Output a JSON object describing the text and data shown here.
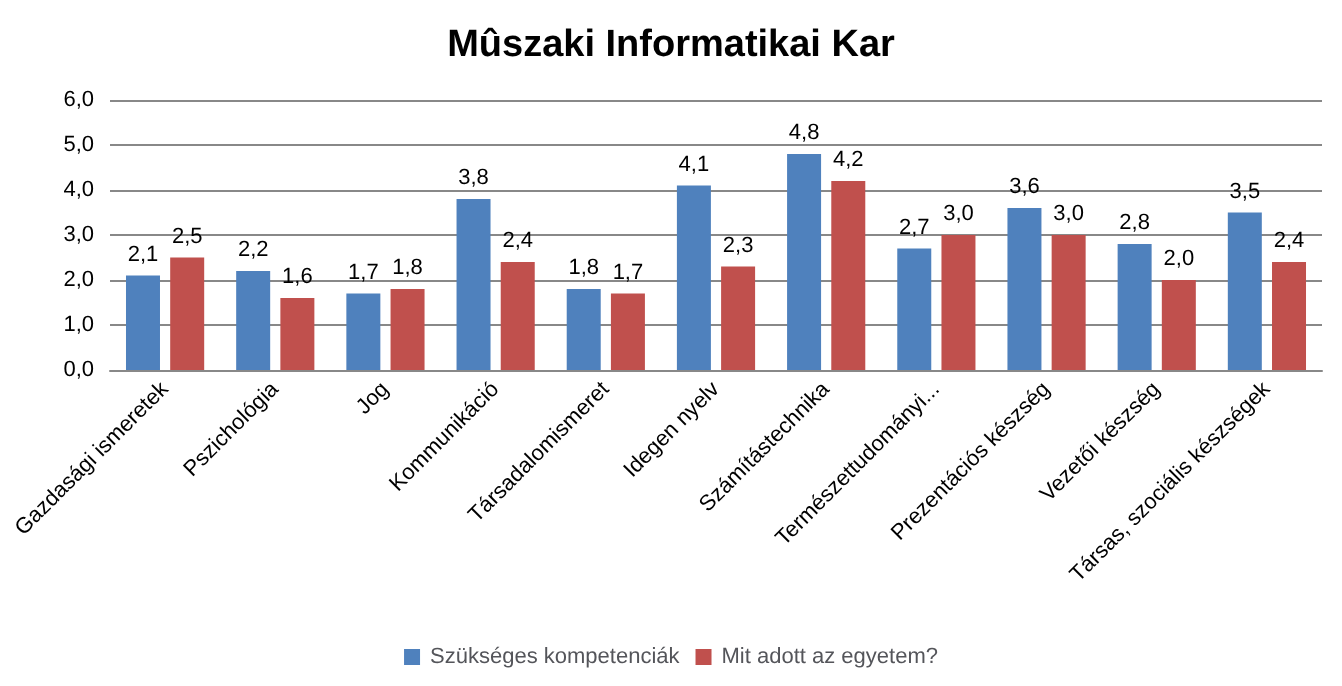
{
  "chart_data": {
    "type": "bar",
    "title": "Mûszaki Informatikai Kar",
    "categories": [
      "Gazdasági ismeretek",
      "Pszichológia",
      "Jog",
      "Kommunikáció",
      "Társadalomismeret",
      "Idegen nyelv",
      "Számítástechnika",
      "Természettudományi...",
      "Prezentációs készség",
      "Vezetői készség",
      "Társas, szociális készségek"
    ],
    "series": [
      {
        "name": "Szükséges kompetenciák",
        "color": "#4f81bd",
        "values": [
          2.1,
          2.2,
          1.7,
          3.8,
          1.8,
          4.1,
          4.8,
          2.7,
          3.6,
          2.8,
          3.5
        ],
        "value_labels": [
          "2,1",
          "2,2",
          "1,7",
          "3,8",
          "1,8",
          "4,1",
          "4,8",
          "2,7",
          "3,6",
          "2,8",
          "3,5"
        ]
      },
      {
        "name": "Mit adott az egyetem?",
        "color": "#c0504d",
        "values": [
          2.5,
          1.6,
          1.8,
          2.4,
          1.7,
          2.3,
          4.2,
          3.0,
          3.0,
          2.0,
          2.4
        ],
        "value_labels": [
          "2,5",
          "1,6",
          "1,8",
          "2,4",
          "1,7",
          "2,3",
          "4,2",
          "3,0",
          "3,0",
          "2,0",
          "2,4"
        ]
      }
    ],
    "ylim": [
      0,
      6
    ],
    "yticks": [
      {
        "value": 0,
        "label": "0,0"
      },
      {
        "value": 1,
        "label": "1,0"
      },
      {
        "value": 2,
        "label": "2,0"
      },
      {
        "value": 3,
        "label": "3,0"
      },
      {
        "value": 4,
        "label": "4,0"
      },
      {
        "value": 5,
        "label": "5,0"
      },
      {
        "value": 6,
        "label": "6,0"
      }
    ],
    "grid": "y",
    "legend": "bottom"
  }
}
